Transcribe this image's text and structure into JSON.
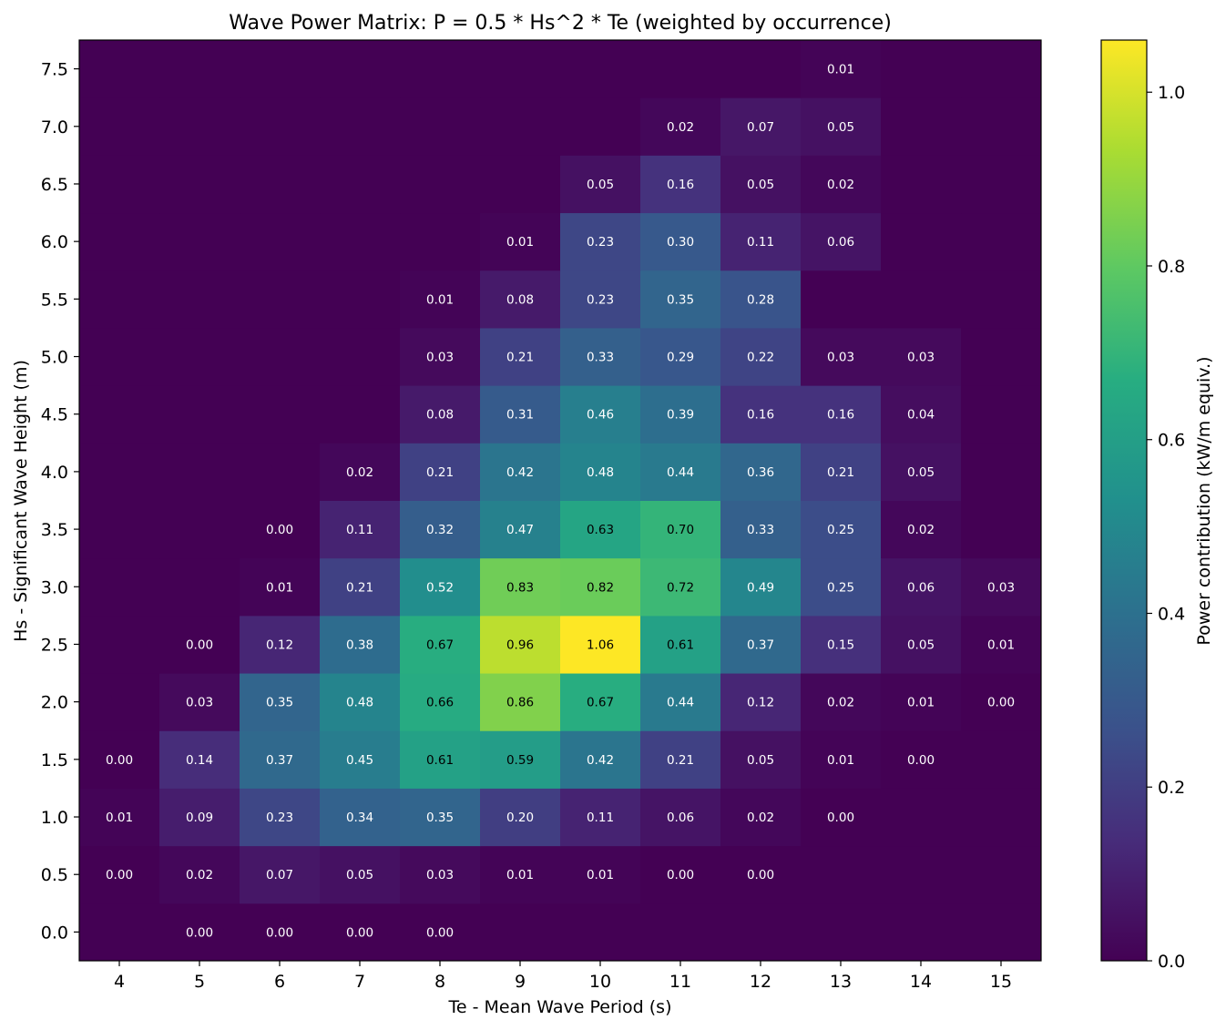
{
  "chart_data": {
    "type": "heatmap",
    "title": "Wave Power Matrix: P = 0.5 * Hs^2 * Te (weighted by occurrence)",
    "xlabel": "Te - Mean Wave Period (s)",
    "ylabel": "Hs - Significant Wave Height (m)",
    "colorbar_label": "Power contribution (kW/m equiv.)",
    "colormap": "viridis",
    "x": [
      4,
      5,
      6,
      7,
      8,
      9,
      10,
      11,
      12,
      13,
      14,
      15
    ],
    "y": [
      0.0,
      0.5,
      1.0,
      1.5,
      2.0,
      2.5,
      3.0,
      3.5,
      4.0,
      4.5,
      5.0,
      5.5,
      6.0,
      6.5,
      7.0,
      7.5
    ],
    "x_ticks": [
      "4",
      "5",
      "6",
      "7",
      "8",
      "9",
      "10",
      "11",
      "12",
      "13",
      "14",
      "15"
    ],
    "y_ticks": [
      "0.0",
      "0.5",
      "1.0",
      "1.5",
      "2.0",
      "2.5",
      "3.0",
      "3.5",
      "4.0",
      "4.5",
      "5.0",
      "5.5",
      "6.0",
      "6.5",
      "7.0",
      "7.5"
    ],
    "colorbar_ticks": [
      "0.0",
      "0.2",
      "0.4",
      "0.6",
      "0.8",
      "1.0"
    ],
    "colorbar_range": [
      0,
      1.06
    ],
    "values": [
      [
        null,
        0.0,
        0.0,
        0.0,
        0.0,
        null,
        null,
        null,
        null,
        null,
        null,
        null
      ],
      [
        0.0,
        0.02,
        0.07,
        0.05,
        0.03,
        0.01,
        0.01,
        0.0,
        0.0,
        null,
        null,
        null
      ],
      [
        0.01,
        0.09,
        0.23,
        0.34,
        0.35,
        0.2,
        0.11,
        0.06,
        0.02,
        0.0,
        null,
        null
      ],
      [
        0.0,
        0.14,
        0.37,
        0.45,
        0.61,
        0.59,
        0.42,
        0.21,
        0.05,
        0.01,
        0.0,
        null
      ],
      [
        null,
        0.03,
        0.35,
        0.48,
        0.66,
        0.86,
        0.67,
        0.44,
        0.12,
        0.02,
        0.01,
        0.0
      ],
      [
        null,
        0.0,
        0.12,
        0.38,
        0.67,
        0.96,
        1.06,
        0.61,
        0.37,
        0.15,
        0.05,
        0.01
      ],
      [
        null,
        null,
        0.01,
        0.21,
        0.52,
        0.83,
        0.82,
        0.72,
        0.49,
        0.25,
        0.06,
        0.03
      ],
      [
        null,
        null,
        0.0,
        0.11,
        0.32,
        0.47,
        0.63,
        0.7,
        0.33,
        0.25,
        0.02,
        null
      ],
      [
        null,
        null,
        null,
        0.02,
        0.21,
        0.42,
        0.48,
        0.44,
        0.36,
        0.21,
        0.05,
        null
      ],
      [
        null,
        null,
        null,
        null,
        0.08,
        0.31,
        0.46,
        0.39,
        0.16,
        0.16,
        0.04,
        null
      ],
      [
        null,
        null,
        null,
        null,
        0.03,
        0.21,
        0.33,
        0.29,
        0.22,
        0.03,
        0.03,
        null
      ],
      [
        null,
        null,
        null,
        null,
        0.01,
        0.08,
        0.23,
        0.35,
        0.28,
        null,
        null,
        null
      ],
      [
        null,
        null,
        null,
        null,
        null,
        0.01,
        0.23,
        0.3,
        0.11,
        0.06,
        null,
        null
      ],
      [
        null,
        null,
        null,
        null,
        null,
        null,
        0.05,
        0.16,
        0.05,
        0.02,
        null,
        null
      ],
      [
        null,
        null,
        null,
        null,
        null,
        null,
        null,
        0.02,
        0.07,
        0.05,
        null,
        null
      ],
      [
        null,
        null,
        null,
        null,
        null,
        null,
        null,
        null,
        null,
        0.01,
        null,
        null
      ]
    ]
  }
}
